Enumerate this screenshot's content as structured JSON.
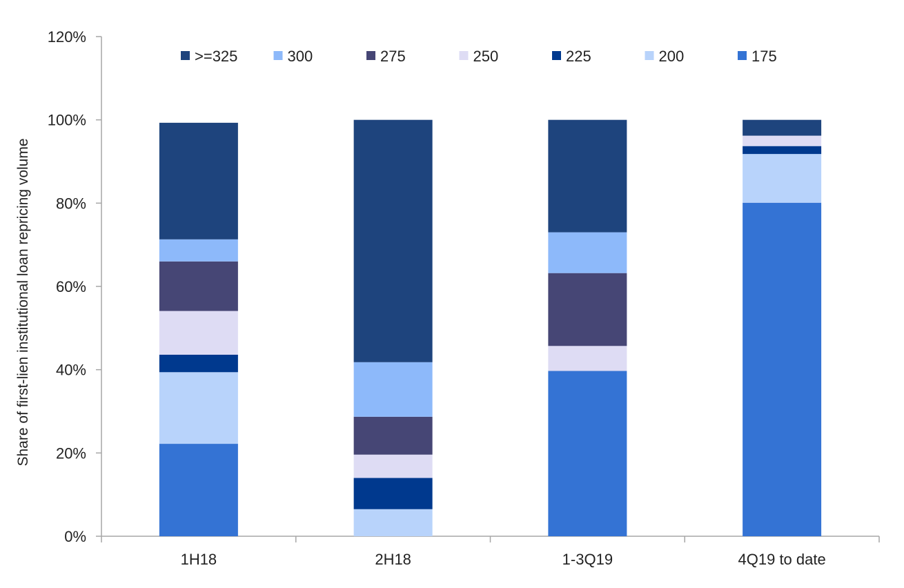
{
  "chart_data": {
    "type": "bar",
    "stacked": true,
    "title": "",
    "xlabel": "",
    "ylabel": "Share of first-lien institutional loan repricing volume",
    "ylim": [
      0,
      120
    ],
    "yticks": [
      "0%",
      "20%",
      "40%",
      "60%",
      "80%",
      "100%",
      "120%"
    ],
    "grid": false,
    "legend_position": "top",
    "categories": [
      "1H18",
      "2H18",
      "1-3Q19",
      "4Q19 to date"
    ],
    "series": [
      {
        "name": "175",
        "color": "#3473D4",
        "values": [
          22.2,
          0,
          39.7,
          80.1
        ]
      },
      {
        "name": "200",
        "color": "#B8D3FB",
        "values": [
          17.2,
          6.5,
          0,
          11.7
        ]
      },
      {
        "name": "225",
        "color": "#00398E",
        "values": [
          4.2,
          7.5,
          0,
          1.9
        ]
      },
      {
        "name": "250",
        "color": "#DEDCF4",
        "values": [
          10.5,
          5.6,
          6.0,
          2.5
        ]
      },
      {
        "name": "275",
        "color": "#464675",
        "values": [
          11.9,
          9.1,
          17.5,
          0
        ]
      },
      {
        "name": "300",
        "color": "#8DB9FA",
        "values": [
          5.3,
          13.1,
          9.8,
          0
        ]
      },
      {
        "name": ">=325",
        "color": "#1E447D",
        "values": [
          28.0,
          58.2,
          27.0,
          3.8
        ]
      }
    ],
    "legend_order": [
      ">=325",
      "300",
      "275",
      "250",
      "225",
      "200",
      "175"
    ]
  }
}
